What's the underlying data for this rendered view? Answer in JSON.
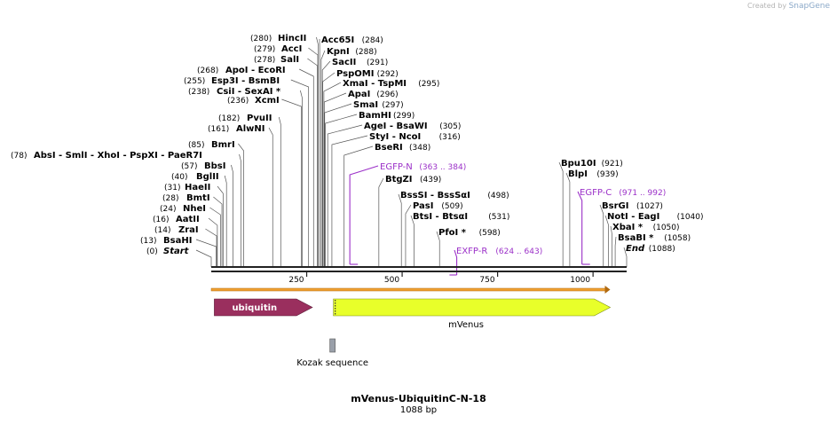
{
  "credit": {
    "created_by": "Created by",
    "brand": "SnapGene"
  },
  "title": "mVenus-UbiquitinC-N-18",
  "subtitle": "1088 bp",
  "sequence_length": 1088,
  "ruler": [
    {
      "value": 250,
      "label": "250"
    },
    {
      "value": 500,
      "label": "500"
    },
    {
      "value": 750,
      "label": "750"
    },
    {
      "value": 1000,
      "label": "1000"
    }
  ],
  "left_sites": [
    {
      "label": "Start",
      "pos": "(0)",
      "site": 0,
      "italic": true
    },
    {
      "label": "BsaHI",
      "pos": "(13)",
      "site": 13
    },
    {
      "label": "ZraI",
      "pos": "(14)",
      "site": 14
    },
    {
      "label": "AatII",
      "pos": "(16)",
      "site": 16
    },
    {
      "label": "NheI",
      "pos": "(24)",
      "site": 24
    },
    {
      "label": "BmtI",
      "pos": "(28)",
      "site": 28
    },
    {
      "label": "HaeII",
      "pos": "(31)",
      "site": 31
    },
    {
      "label": "BglII",
      "pos": "(40)",
      "site": 40
    },
    {
      "label": "BbsI",
      "pos": "(57)",
      "site": 57
    },
    {
      "label": "BmrI",
      "pos": "(85)",
      "site": 85
    },
    {
      "label": "AbsI - SmlI - XhoI - PspXI - PaeR7I",
      "pos": "(78)",
      "site": 78
    },
    {
      "label": "AlwNI",
      "pos": "(161)",
      "site": 161
    },
    {
      "label": "PvuII",
      "pos": "(182)",
      "site": 182
    },
    {
      "label": "XcmI",
      "pos": "(236)",
      "site": 236
    },
    {
      "label": "CsiI - SexAI *",
      "pos": "(238)",
      "site": 238
    },
    {
      "label": "Esp3I - BsmBI",
      "pos": "(255)",
      "site": 255
    },
    {
      "label": "ApoI - EcoRI",
      "pos": "(268)",
      "site": 268
    },
    {
      "label": "SalI",
      "pos": "(278)",
      "site": 278
    },
    {
      "label": "AccI",
      "pos": "(279)",
      "site": 279
    },
    {
      "label": "HincII",
      "pos": "(280)",
      "site": 280
    }
  ],
  "right_sites": [
    {
      "label": "Acc65I",
      "pos": "(284)",
      "site": 284
    },
    {
      "label": "KpnI",
      "pos": "(288)",
      "site": 288
    },
    {
      "label": "SacII",
      "pos": "(291)",
      "site": 291
    },
    {
      "label": "PspOMI",
      "pos": "(292)",
      "site": 292
    },
    {
      "label": "XmaI - TspMI",
      "pos": "(295)",
      "site": 295
    },
    {
      "label": "ApaI",
      "pos": "(296)",
      "site": 296
    },
    {
      "label": "SmaI",
      "pos": "(297)",
      "site": 297
    },
    {
      "label": "BamHI",
      "pos": "(299)",
      "site": 299
    },
    {
      "label": "AgeI - BsaWI",
      "pos": "(305)",
      "site": 305
    },
    {
      "label": "StyI - NcoI",
      "pos": "(316)",
      "site": 316
    },
    {
      "label": "BseRI",
      "pos": "(348)",
      "site": 348
    },
    {
      "label": "BtgZI",
      "pos": "(439)",
      "site": 439
    },
    {
      "label": "BssSI - BssSαI",
      "pos": "(498)",
      "site": 498
    },
    {
      "label": "PasI",
      "pos": "(509)",
      "site": 509
    },
    {
      "label": "BtsI - BtsαI",
      "pos": "(531)",
      "site": 531
    },
    {
      "label": "PfoI *",
      "pos": "(598)",
      "site": 598
    },
    {
      "label": "Bpu10I",
      "pos": "(921)",
      "site": 921
    },
    {
      "label": "BlpI",
      "pos": "(939)",
      "site": 939
    },
    {
      "label": "BsrGI",
      "pos": "(1027)",
      "site": 1027
    },
    {
      "label": "NotI - EagI",
      "pos": "(1040)",
      "site": 1040
    },
    {
      "label": "XbaI *",
      "pos": "(1050)",
      "site": 1050
    },
    {
      "label": "BsaBI *",
      "pos": "(1058)",
      "site": 1058
    },
    {
      "label": "End",
      "pos": "(1088)",
      "site": 1088,
      "italic": true
    }
  ],
  "primers": [
    {
      "name": "EGFP-N",
      "range": "(363 .. 384)",
      "start": 363,
      "end": 384
    },
    {
      "name": "EXFP-R",
      "range": "(624 .. 643)",
      "start": 624,
      "end": 643
    },
    {
      "name": "EGFP-C",
      "range": "(971 .. 992)",
      "start": 971,
      "end": 992
    }
  ],
  "features": [
    {
      "name": "ubiquitin",
      "start": 8,
      "end": 265,
      "color": "#9a2f5e",
      "label_inside": true
    },
    {
      "name": "mVenus",
      "start": 320,
      "end": 1045,
      "color": "#e8ff2a",
      "label_inside": false
    },
    {
      "name": "Kozak sequence",
      "start": 313,
      "end": 320,
      "color": "#9aa0aa",
      "label_inside": false
    }
  ],
  "orf": {
    "start": 0,
    "end": 1045,
    "color": "#f0a030"
  }
}
